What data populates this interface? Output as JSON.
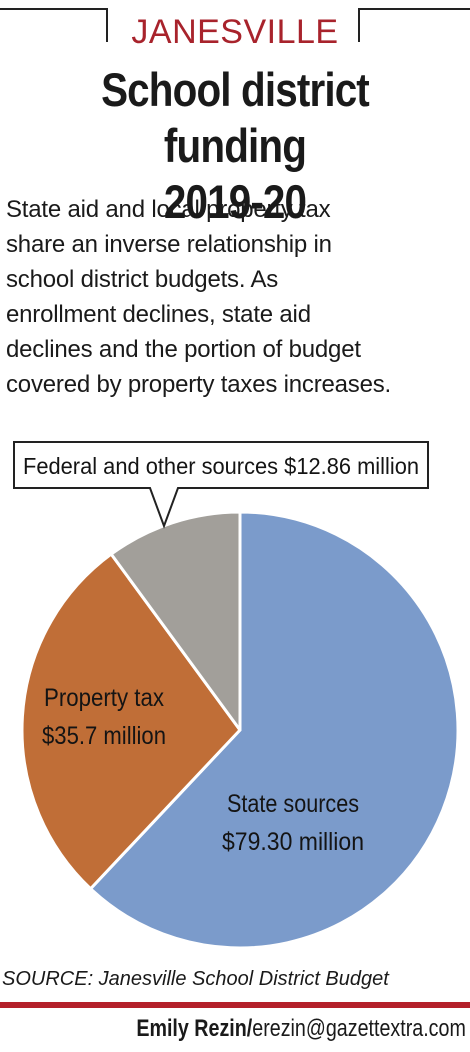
{
  "header": {
    "kicker": "JANESVILLE",
    "title_line1": "School district funding",
    "title_line2": "2019-20"
  },
  "intro": {
    "line1": "State aid and local property tax",
    "line2": "share an inverse relationship in",
    "line3": "school district budgets. As",
    "line4": "enrollment declines, state aid",
    "line5": "declines and the portion of budget",
    "line6": "covered by property taxes increases."
  },
  "chart_data": {
    "type": "pie",
    "title": "School district funding 2019-20",
    "slices": [
      {
        "label": "State sources",
        "value_text": "$79.30 million",
        "value": 79.3,
        "color": "#7b9bcb"
      },
      {
        "label": "Property tax",
        "value_text": "$35.7 million",
        "value": 35.7,
        "color": "#c06e37"
      },
      {
        "label": "Federal and other sources",
        "value_text": "$12.86 million",
        "value": 12.86,
        "color": "#a29f9a"
      }
    ],
    "callout": "Federal and other sources $12.86 million"
  },
  "footer": {
    "source": "SOURCE: Janesville School District Budget",
    "credit_name": "Emily Rezin/",
    "credit_email": "erezin@gazettextra.com"
  }
}
